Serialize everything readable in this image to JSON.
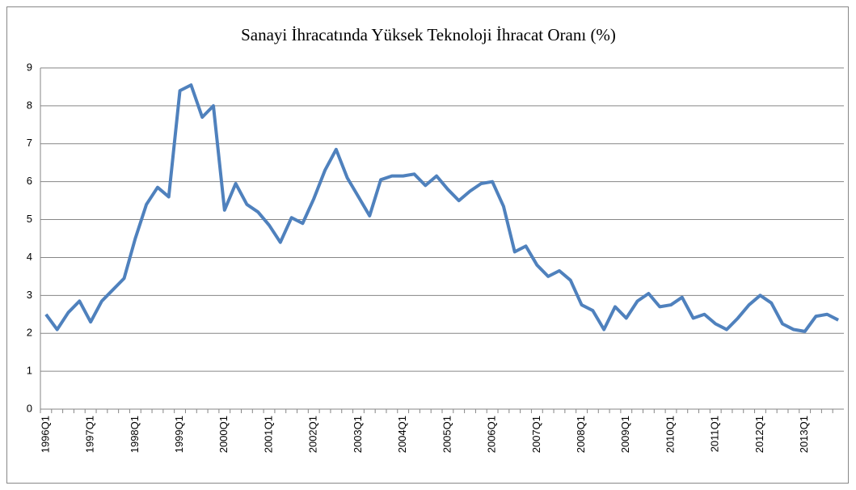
{
  "chart_data": {
    "type": "line",
    "title": "Sanayi İhracatında Yüksek Teknoloji İhracat Oranı (%)",
    "categories": [
      "1996Q1",
      null,
      null,
      null,
      "1997Q1",
      null,
      null,
      null,
      "1998Q1",
      null,
      null,
      null,
      "1999Q1",
      null,
      null,
      null,
      "2000Q1",
      null,
      null,
      null,
      "2001Q1",
      null,
      null,
      null,
      "2002Q1",
      null,
      null,
      null,
      "2003Q1",
      null,
      null,
      null,
      "2004Q1",
      null,
      null,
      null,
      "2005Q1",
      null,
      null,
      null,
      "2006Q1",
      null,
      null,
      null,
      "2007Q1",
      null,
      null,
      null,
      "2008Q1",
      null,
      null,
      null,
      "2009Q1",
      null,
      null,
      null,
      "2010Q1",
      null,
      null,
      null,
      "2011Q1",
      null,
      null,
      null,
      "2012Q1",
      null,
      null,
      null,
      "2013Q1",
      null,
      null,
      null
    ],
    "values": [
      2.5,
      2.1,
      2.55,
      2.85,
      2.3,
      2.85,
      3.15,
      3.45,
      4.5,
      5.4,
      5.85,
      5.6,
      8.4,
      8.55,
      7.7,
      8.0,
      5.25,
      5.95,
      5.4,
      5.2,
      4.85,
      4.4,
      5.05,
      4.9,
      5.55,
      6.3,
      6.85,
      6.1,
      5.6,
      5.1,
      6.05,
      6.15,
      6.15,
      6.2,
      5.9,
      6.15,
      5.8,
      5.5,
      5.75,
      5.95,
      6.0,
      5.35,
      4.15,
      4.3,
      3.8,
      3.5,
      3.65,
      3.4,
      2.75,
      2.6,
      2.1,
      2.7,
      2.4,
      2.85,
      3.05,
      2.7,
      2.75,
      2.95,
      2.4,
      2.5,
      2.25,
      2.1,
      2.4,
      2.75,
      3.0,
      2.8,
      2.25,
      2.1,
      2.05,
      2.45,
      2.5,
      2.35
    ],
    "color": "#4f81bd",
    "ylim": [
      0,
      9
    ],
    "yticks": [
      0,
      1,
      2,
      3,
      4,
      5,
      6,
      7,
      8,
      9
    ],
    "grid": true
  }
}
